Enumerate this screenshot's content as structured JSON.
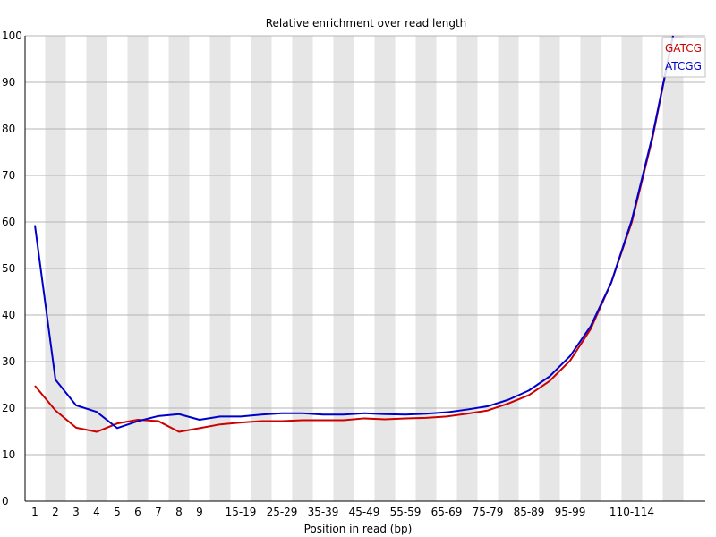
{
  "chart_data": {
    "type": "line",
    "title": "Relative enrichment over read length",
    "xlabel": "Position in read (bp)",
    "ylabel": "",
    "ylim": [
      0,
      100
    ],
    "yticks": [
      0,
      10,
      20,
      30,
      40,
      50,
      60,
      70,
      80,
      90,
      100
    ],
    "grid": "horizontal",
    "legend_position": "top-right",
    "categories": [
      "1",
      "2",
      "3",
      "4",
      "5",
      "6",
      "7",
      "8",
      "9",
      "10-14",
      "15-19",
      "20-24",
      "25-29",
      "30-34",
      "35-39",
      "40-44",
      "45-49",
      "50-54",
      "55-59",
      "60-64",
      "65-69",
      "70-74",
      "75-79",
      "80-84",
      "85-89",
      "90-94",
      "95-99",
      "100-104",
      "105-109",
      "110-114",
      "115-119",
      "120-124"
    ],
    "tick_labels": [
      "1",
      "2",
      "3",
      "4",
      "5",
      "6",
      "7",
      "8",
      "9",
      "",
      "15-19",
      "",
      "25-29",
      "",
      "35-39",
      "",
      "45-49",
      "",
      "55-59",
      "",
      "65-69",
      "",
      "75-79",
      "",
      "85-89",
      "",
      "95-99",
      "",
      "",
      "110-114",
      "",
      ""
    ],
    "series": [
      {
        "name": "GATCG",
        "color": "#cc0000",
        "values": [
          24.8,
          19.5,
          15.8,
          14.9,
          16.7,
          17.5,
          17.2,
          14.9,
          15.7,
          16.5,
          16.9,
          17.2,
          17.2,
          17.4,
          17.4,
          17.4,
          17.8,
          17.6,
          17.8,
          17.9,
          18.2,
          18.8,
          19.5,
          21.0,
          22.8,
          25.8,
          30.2,
          37.0,
          47.0,
          60.0,
          78.0,
          100.0
        ]
      },
      {
        "name": "ATCGG",
        "color": "#0000cc",
        "values": [
          59.3,
          26.1,
          20.6,
          19.2,
          15.7,
          17.2,
          18.3,
          18.7,
          17.5,
          18.2,
          18.2,
          18.6,
          18.9,
          18.9,
          18.6,
          18.6,
          18.9,
          18.7,
          18.6,
          18.8,
          19.1,
          19.7,
          20.4,
          21.8,
          23.8,
          26.8,
          31.2,
          37.6,
          47.0,
          60.5,
          78.5,
          100.0
        ]
      }
    ]
  }
}
